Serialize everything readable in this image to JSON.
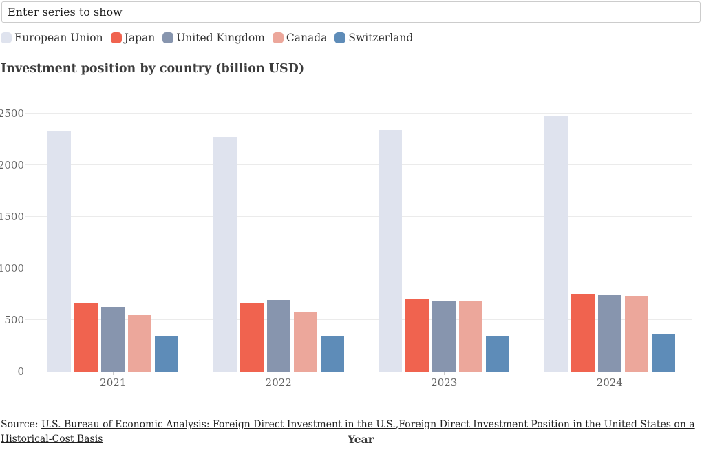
{
  "search": {
    "placeholder": "Enter series to show"
  },
  "chart_data": {
    "type": "bar",
    "title": "Investment position by country (billion USD)",
    "xlabel": "Year",
    "ylabel": "",
    "categories": [
      "2021",
      "2022",
      "2023",
      "2024"
    ],
    "series": [
      {
        "name": "European Union",
        "color": "#dfe3ee",
        "values": [
          2331,
          2273,
          2342,
          2474
        ]
      },
      {
        "name": "Japan",
        "color": "#f0634f",
        "values": [
          658,
          667,
          705,
          753
        ]
      },
      {
        "name": "United Kingdom",
        "color": "#8795ae",
        "values": [
          627,
          691,
          688,
          742
        ]
      },
      {
        "name": "Canada",
        "color": "#eca79b",
        "values": [
          548,
          579,
          686,
          735
        ]
      },
      {
        "name": "Switzerland",
        "color": "#5e8cb8",
        "values": [
          342,
          340,
          348,
          365
        ]
      }
    ],
    "ylim": [
      0,
      2820
    ],
    "yticks": [
      0,
      500,
      1000,
      1500,
      2000,
      2500
    ],
    "grid": true,
    "legend_position": "top",
    "grid_color": "#ebebeb",
    "axis_color": "#d9d9d9"
  },
  "source": {
    "prefix": "Source: ",
    "separator": ",",
    "links": [
      {
        "text": "U.S. Bureau of Economic Analysis: Foreign Direct Investment in the U.S."
      },
      {
        "text": "Foreign Direct Investment Position in the United States on a Historical-Cost Basis"
      }
    ]
  }
}
